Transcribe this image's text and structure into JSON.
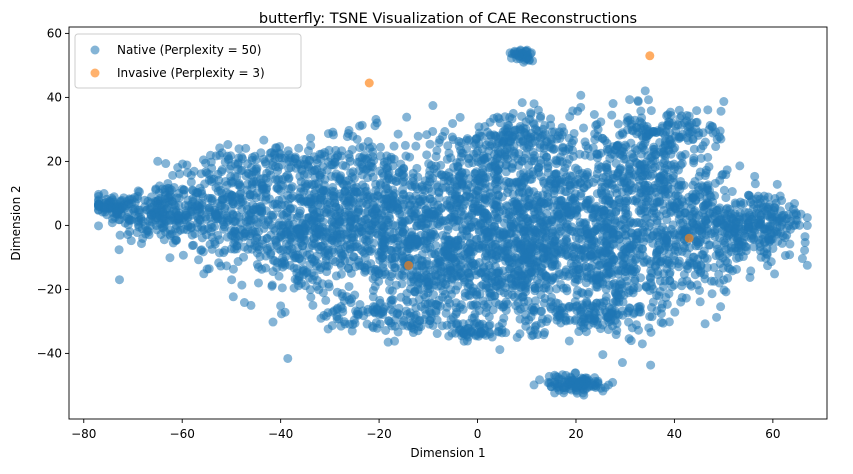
{
  "chart_data": {
    "type": "scatter",
    "title": "butterfly: TSNE Visualization of CAE Reconstructions",
    "xlabel": "Dimension 1",
    "ylabel": "Dimension 2",
    "xlim": [
      -83,
      71
    ],
    "ylim": [
      -60.5,
      62
    ],
    "xticks": [
      -80,
      -60,
      -40,
      -20,
      0,
      20,
      40,
      60
    ],
    "yticks": [
      -40,
      -20,
      0,
      20,
      40,
      60
    ],
    "xtick_labels": [
      "−80",
      "−60",
      "−40",
      "−20",
      "0",
      "20",
      "40",
      "60"
    ],
    "ytick_labels": [
      "−40",
      "−20",
      "0",
      "20",
      "40",
      "60"
    ],
    "grid": false,
    "legend_position": "top-left",
    "series": [
      {
        "name": "Native (Perplexity = 50)",
        "color": "#1f77b4",
        "alpha": 0.55,
        "clusters": [
          {
            "cx": -74,
            "cy": 6,
            "sx": 2.5,
            "sy": 1.5,
            "n": 60
          },
          {
            "cx": -65,
            "cy": 4,
            "sx": 5,
            "sy": 5,
            "n": 220
          },
          {
            "cx": -50,
            "cy": 5,
            "sx": 6,
            "sy": 8,
            "n": 300
          },
          {
            "cx": -35,
            "cy": -3,
            "sx": 7,
            "sy": 10,
            "n": 420
          },
          {
            "cx": -22,
            "cy": 8,
            "sx": 7,
            "sy": 10,
            "n": 380
          },
          {
            "cx": -10,
            "cy": -10,
            "sx": 7,
            "sy": 10,
            "n": 420
          },
          {
            "cx": 0,
            "cy": 10,
            "sx": 8,
            "sy": 10,
            "n": 420
          },
          {
            "cx": 8,
            "cy": -12,
            "sx": 8,
            "sy": 9,
            "n": 420
          },
          {
            "cx": 18,
            "cy": 5,
            "sx": 8,
            "sy": 12,
            "n": 440
          },
          {
            "cx": 28,
            "cy": -12,
            "sx": 7,
            "sy": 9,
            "n": 360
          },
          {
            "cx": 35,
            "cy": 15,
            "sx": 6,
            "sy": 10,
            "n": 320
          },
          {
            "cx": 45,
            "cy": -3,
            "sx": 6,
            "sy": 9,
            "n": 300
          },
          {
            "cx": 57,
            "cy": 0,
            "sx": 5,
            "sy": 5,
            "n": 230
          },
          {
            "cx": 8,
            "cy": 28,
            "sx": 5,
            "sy": 4,
            "n": 140
          },
          {
            "cx": -18,
            "cy": -28,
            "sx": 8,
            "sy": 3,
            "n": 120
          },
          {
            "cx": 22,
            "cy": -28,
            "sx": 8,
            "sy": 3,
            "n": 120
          },
          {
            "cx": -40,
            "cy": 20,
            "sx": 8,
            "sy": 3,
            "n": 110
          },
          {
            "cx": 40,
            "cy": 30,
            "sx": 5,
            "sy": 4,
            "n": 100
          },
          {
            "cx": 0,
            "cy": -33,
            "sx": 3,
            "sy": 1.5,
            "n": 50
          },
          {
            "cx": 9.5,
            "cy": 53,
            "sx": 1.2,
            "sy": 1.2,
            "n": 40
          },
          {
            "cx": 20,
            "cy": -49.5,
            "sx": 3,
            "sy": 1.5,
            "n": 110
          }
        ]
      },
      {
        "name": "Invasive (Perplexity = 3)",
        "color": "#ff7f0e",
        "alpha": 0.55,
        "points": [
          [
            -22,
            44.5
          ],
          [
            35,
            53
          ],
          [
            -14,
            -12.5
          ],
          [
            43,
            -4
          ]
        ]
      }
    ]
  }
}
